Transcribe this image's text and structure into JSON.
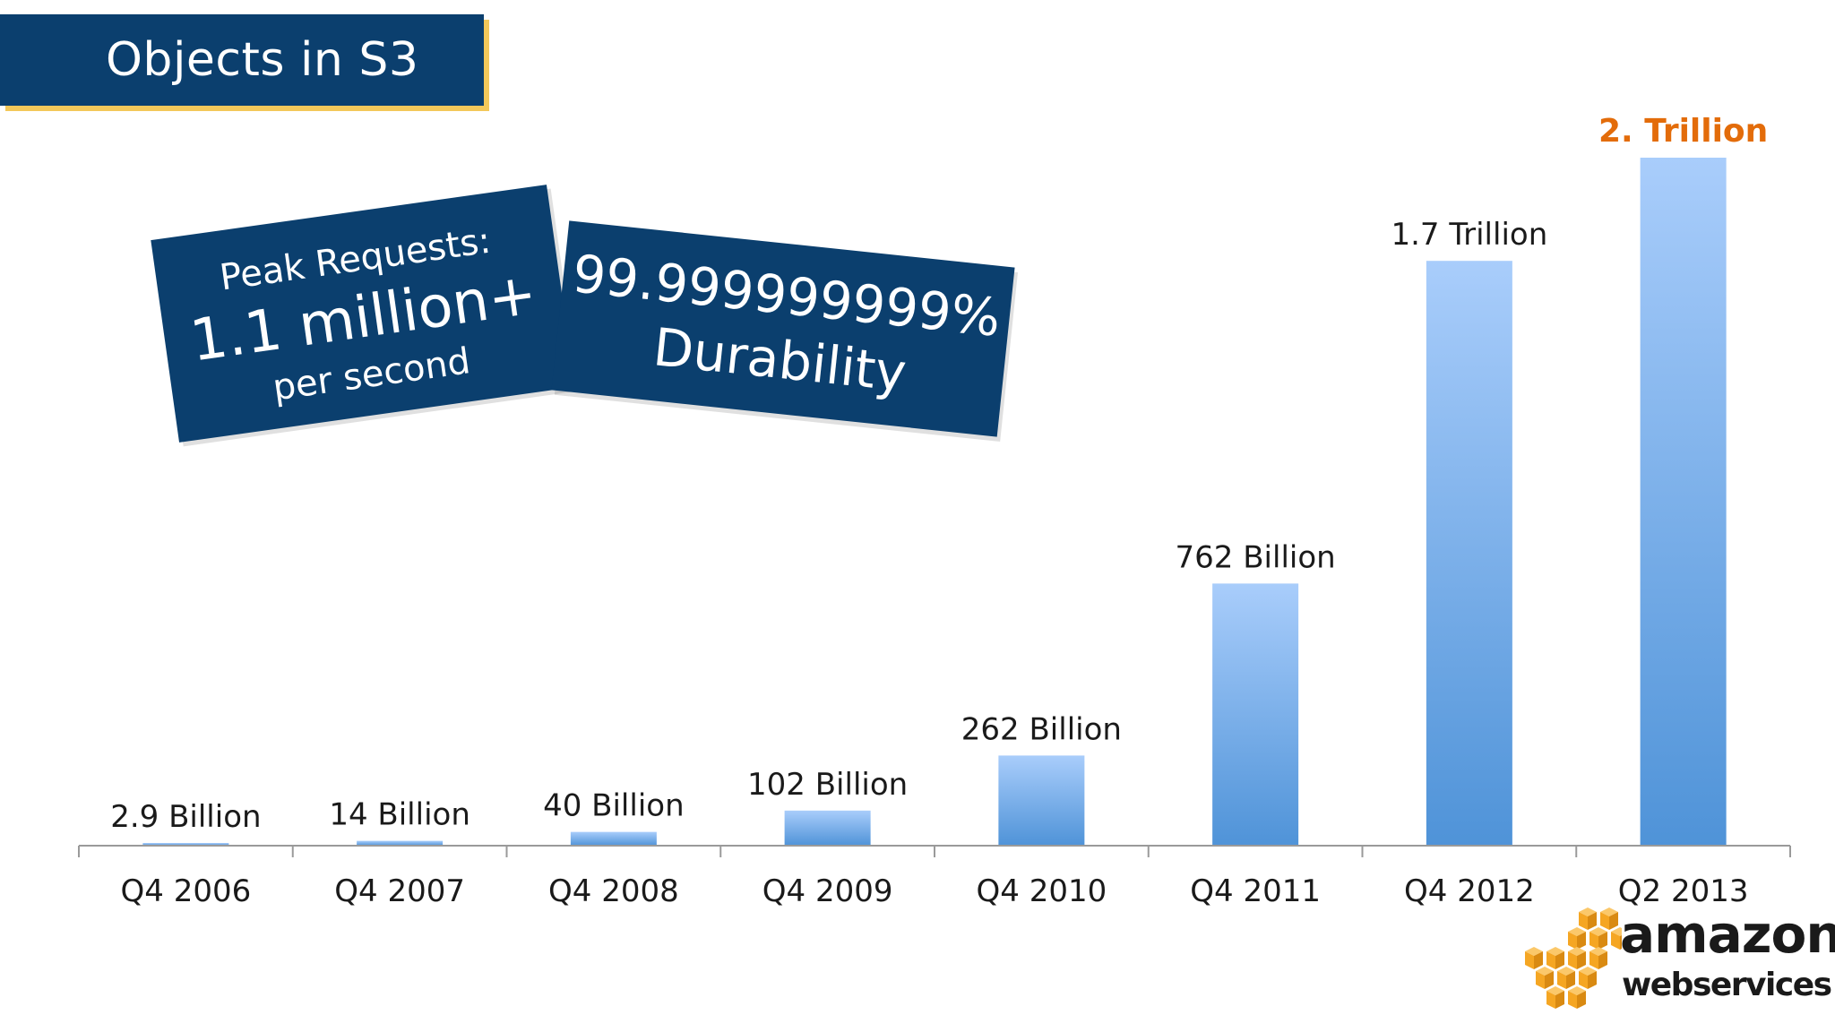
{
  "slide": {
    "title": "Objects in S3"
  },
  "callouts": {
    "peak": {
      "line1": "Peak Requests:",
      "line2": "1.1 million+",
      "line3": "per second"
    },
    "durability": {
      "line1": "99.999999999%",
      "line2": "Durability"
    }
  },
  "logo": {
    "word": "amazon",
    "sub": "webservices",
    "icon": "aws-cubes-icon",
    "color": "#f5a623"
  },
  "chart_data": {
    "type": "bar",
    "title": "Objects in S3",
    "categories": [
      "Q4 2006",
      "Q4 2007",
      "Q4 2008",
      "Q4 2009",
      "Q4 2010",
      "Q4 2011",
      "Q4 2012",
      "Q2 2013"
    ],
    "values": [
      2.9,
      14,
      40,
      102,
      262,
      762,
      1700,
      2000
    ],
    "units": "Billion",
    "data_labels": [
      "2.9 Billion",
      "14 Billion",
      "40 Billion",
      "102 Billion",
      "262 Billion",
      "762 Billion",
      "1.7 Trillion",
      "2. Trillion"
    ],
    "highlight_index": 7,
    "highlight_color": "#e36c0a",
    "bar_color_top": "#a9cdfb",
    "bar_color_bottom": "#4f93d8",
    "ylim": [
      0,
      2000
    ],
    "grid": false,
    "xlabel": "",
    "ylabel": ""
  }
}
